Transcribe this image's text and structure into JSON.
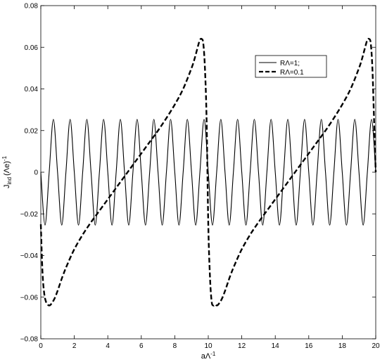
{
  "chart_data": {
    "type": "line",
    "title": "",
    "xlabel": {
      "base": "aΛ",
      "sup": "-1"
    },
    "ylabel": {
      "base": "J",
      "sub": "ind",
      "paren": "(Λe)",
      "sup": "-1"
    },
    "xlim": [
      0,
      20
    ],
    "ylim": [
      -0.08,
      0.08
    ],
    "xticks": [
      0,
      2,
      4,
      6,
      8,
      10,
      12,
      14,
      16,
      18,
      20
    ],
    "yticks": [
      -0.08,
      -0.06,
      -0.04,
      -0.02,
      0,
      0.02,
      0.04,
      0.06,
      0.08
    ],
    "ytick_labels": [
      "−0.08",
      "−0.06",
      "−0.04",
      "−0.02",
      "0",
      "0.02",
      "0.04",
      "0.06",
      "0.08"
    ],
    "grid": false,
    "legend_position": "top-right",
    "series": [
      {
        "name": "RΛ=1;",
        "style": "solid",
        "color": "#000000",
        "x": [
          0,
          0.25,
          0.5,
          0.75,
          1,
          1.25,
          1.5,
          1.75,
          2,
          2.25,
          2.5,
          2.75,
          3,
          3.25,
          3.5,
          3.75,
          4,
          4.25,
          4.5,
          4.75,
          5,
          5.25,
          5.5,
          5.75,
          6,
          6.25,
          6.5,
          6.75,
          7,
          7.25,
          7.5,
          7.75,
          8,
          8.25,
          8.5,
          8.75,
          9,
          9.25,
          9.5,
          9.75,
          10,
          10.25,
          10.5,
          10.75,
          11,
          11.25,
          11.5,
          11.75,
          12,
          12.25,
          12.5,
          12.75,
          13,
          13.25,
          13.5,
          13.75,
          14,
          14.25,
          14.5,
          14.75,
          15,
          15.25,
          15.5,
          15.75,
          16,
          16.25,
          16.5,
          16.75,
          17,
          17.25,
          17.5,
          17.75,
          18,
          18.25,
          18.5,
          18.75,
          19,
          19.25,
          19.5,
          19.75,
          20
        ],
        "y": [
          0,
          -0.0254,
          0,
          0.0254,
          0,
          -0.0254,
          0,
          0.0254,
          0,
          -0.0254,
          0,
          0.0254,
          0,
          -0.0254,
          0,
          0.0254,
          0,
          -0.0254,
          0,
          0.0254,
          0,
          -0.0254,
          0,
          0.0254,
          0,
          -0.0254,
          0,
          0.0254,
          0,
          -0.0254,
          0,
          0.0254,
          0,
          -0.0254,
          0,
          0.0254,
          0,
          -0.0254,
          0,
          0.0254,
          0,
          -0.0254,
          0,
          0.0254,
          0,
          -0.0254,
          0,
          0.0254,
          0,
          -0.0254,
          0,
          0.0254,
          0,
          -0.0254,
          0,
          0.0254,
          0,
          -0.0254,
          0,
          0.0254,
          0,
          -0.0254,
          0,
          0.0254,
          0,
          -0.0254,
          0,
          0.0254,
          0,
          -0.0254,
          0,
          0.0254,
          0,
          -0.0254,
          0,
          0.0254,
          0,
          -0.0254,
          0,
          0.0254,
          0
        ]
      },
      {
        "name": "RΛ=0.1",
        "style": "dashed",
        "color": "#000000",
        "x": [
          0,
          0.1,
          0.2,
          0.3,
          0.4,
          0.5,
          0.6,
          0.8,
          1,
          1.3,
          1.6,
          2,
          2.5,
          3,
          3.5,
          4,
          4.5,
          5,
          5.5,
          6,
          6.5,
          7,
          7.5,
          8,
          8.5,
          9,
          9.2,
          9.4,
          9.5,
          9.6,
          9.7,
          9.8,
          9.9,
          10,
          10.1,
          10.2,
          10.3,
          10.4,
          10.5,
          10.6,
          10.8,
          11,
          11.3,
          11.6,
          12,
          12.5,
          13,
          13.5,
          14,
          14.5,
          15,
          15.5,
          16,
          16.5,
          17,
          17.5,
          18,
          18.5,
          19,
          19.2,
          19.4,
          19.5,
          19.6,
          19.7,
          19.8,
          19.9,
          20
        ],
        "y": [
          -0.025,
          -0.048,
          -0.058,
          -0.062,
          -0.0635,
          -0.064,
          -0.0635,
          -0.061,
          -0.057,
          -0.05,
          -0.044,
          -0.037,
          -0.03,
          -0.024,
          -0.0185,
          -0.013,
          -0.0075,
          -0.002,
          0.0035,
          0.009,
          0.0145,
          0.02,
          0.026,
          0.0325,
          0.04,
          0.05,
          0.055,
          0.061,
          0.0635,
          0.064,
          0.062,
          0.05,
          0.025,
          -0.025,
          -0.05,
          -0.062,
          -0.064,
          -0.0635,
          -0.064,
          -0.0635,
          -0.061,
          -0.057,
          -0.05,
          -0.044,
          -0.037,
          -0.03,
          -0.024,
          -0.0185,
          -0.013,
          -0.0075,
          -0.002,
          0.0035,
          0.009,
          0.0145,
          0.02,
          0.026,
          0.0325,
          0.04,
          0.05,
          0.055,
          0.061,
          0.0635,
          0.064,
          0.062,
          0.05,
          0.025,
          0
        ]
      }
    ]
  }
}
